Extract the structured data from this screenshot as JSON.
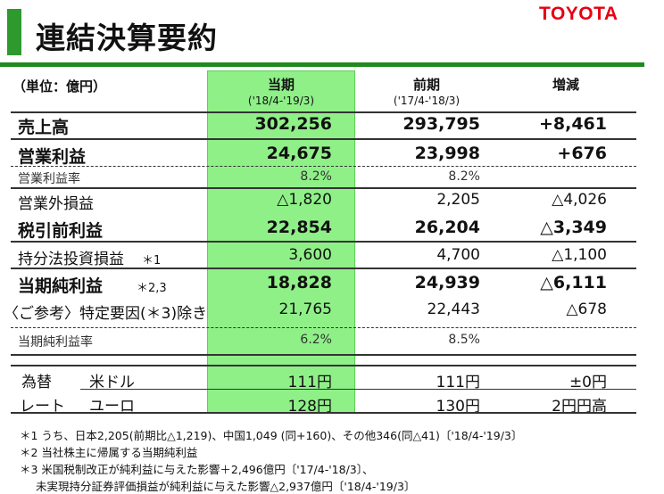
{
  "header": {
    "title": "連結決算要約",
    "logo": "TOYOTA"
  },
  "table": {
    "unit": "（単位：億円）",
    "columns": [
      {
        "label": "当期",
        "period": "('18/4-'19/3)"
      },
      {
        "label": "前期",
        "period": "('17/4-'18/3)"
      },
      {
        "label": "増減"
      }
    ],
    "rows": [
      {
        "label": "売上高",
        "current": "302,256",
        "previous": "293,795",
        "change": "+8,461"
      },
      {
        "label": "営業利益",
        "current": "24,675",
        "previous": "23,998",
        "change": "+676"
      },
      {
        "label": "営業利益率",
        "current": "8.2%",
        "previous": "8.2%",
        "change": ""
      },
      {
        "label": "営業外損益",
        "current": "△1,820",
        "previous": "2,205",
        "change": "△4,026"
      },
      {
        "label": "税引前利益",
        "current": "22,854",
        "previous": "26,204",
        "change": "△3,349"
      },
      {
        "label": "持分法投資損益",
        "note": "＊1",
        "current": "3,600",
        "previous": "4,700",
        "change": "△1,100"
      },
      {
        "label": "当期純利益",
        "note": "＊2,3",
        "current": "18,828",
        "previous": "24,939",
        "change": "△6,111"
      },
      {
        "label": "〈ご参考〉特定要因(＊3)除き",
        "current": "21,765",
        "previous": "22,443",
        "change": "△678"
      },
      {
        "label": "当期純利益率",
        "current": "6.2%",
        "previous": "8.5%",
        "change": ""
      }
    ],
    "fx": {
      "label1": "為替",
      "label2": "レート",
      "rows": [
        {
          "currency": "米ドル",
          "current": "111円",
          "previous": "111円",
          "change": "±0円"
        },
        {
          "currency": "ユーロ",
          "current": "128円",
          "previous": "130円",
          "change": "2円円高"
        }
      ]
    }
  },
  "footnotes": [
    "＊1 うち、日本2,205(前期比△1,219)、中国1,049 (同+160)、その他346(同△41)〔'18/4-'19/3〕",
    "＊2 当社株主に帰属する当期純利益",
    "＊3 米国税制改正が純利益に与えた影響＋2,496億円〔'17/4-'18/3〕、",
    "未実現持分証券評価損益が純利益に与えた影響△2,937億円〔'18/4-'19/3〕"
  ]
}
